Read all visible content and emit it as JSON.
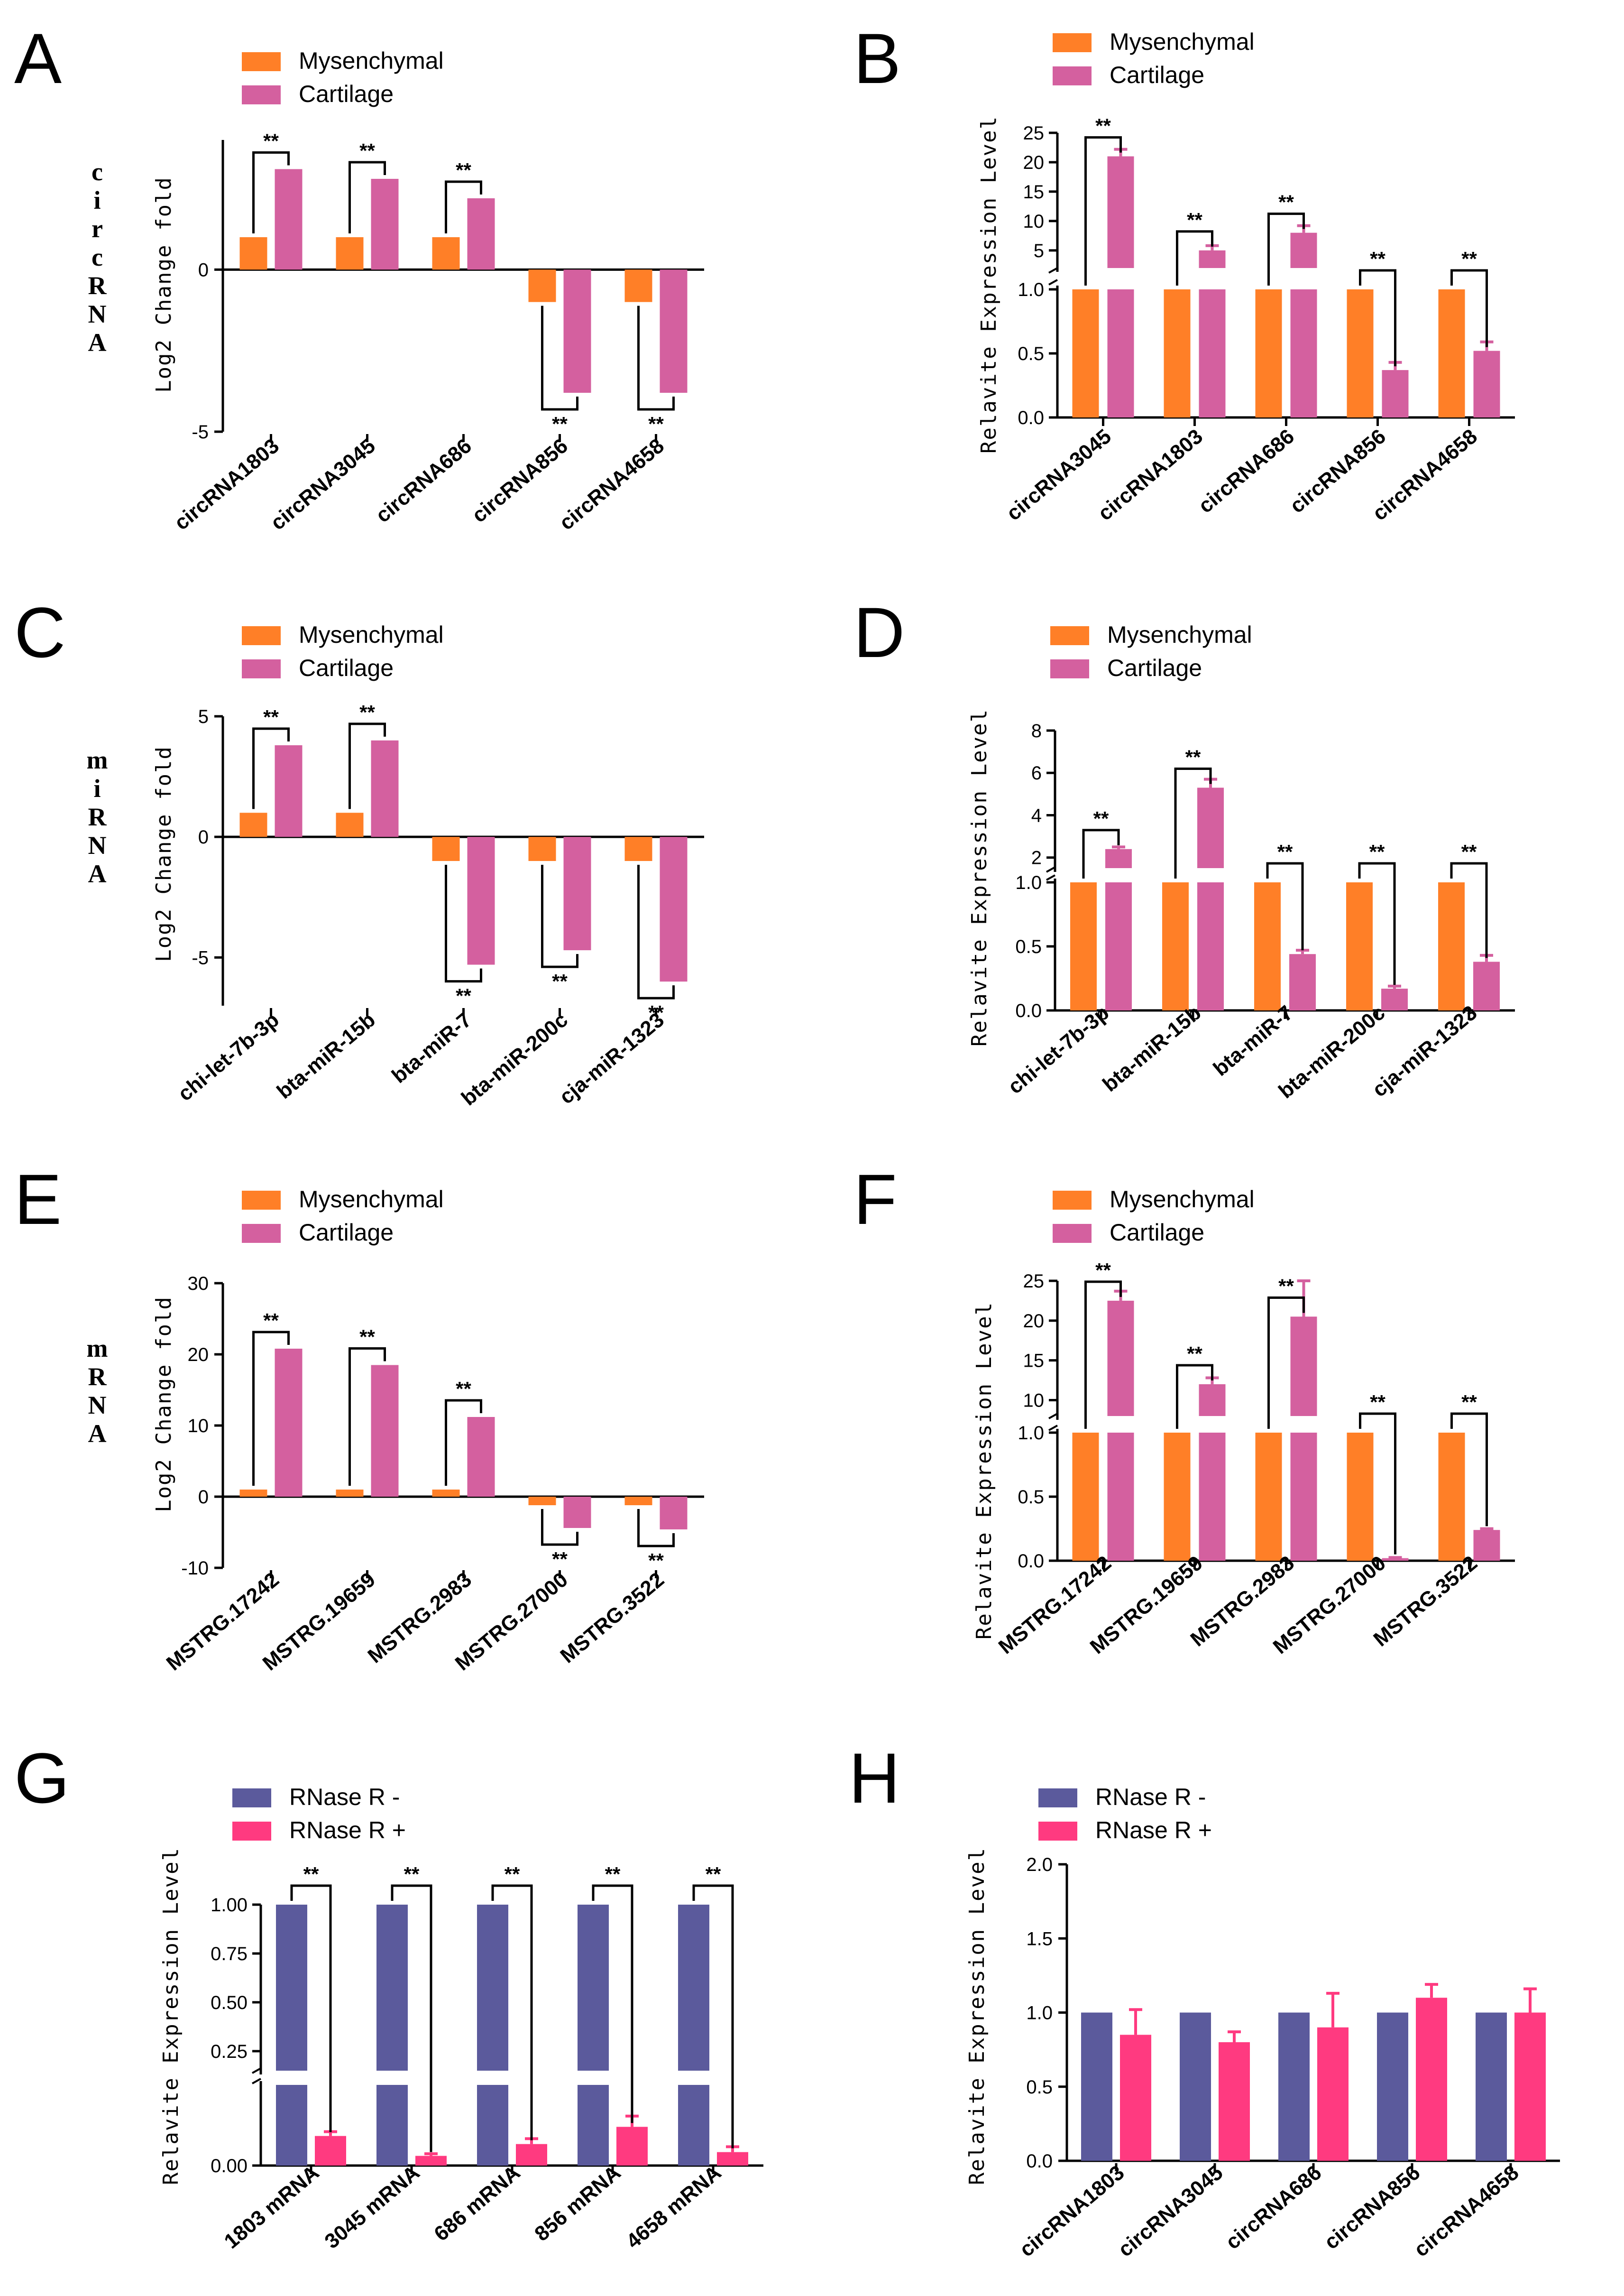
{
  "colors": {
    "orange": "#FF7F27",
    "magenta": "#D4609F",
    "purple": "#5B5A9C",
    "pink": "#FF3A80",
    "axis": "#000000"
  },
  "chart_data": [
    {
      "id": "A",
      "panel": "A",
      "type": "bar",
      "side_label": "circRNA",
      "ylabel": "Log2 Change fold",
      "legend": [
        "Mysenchymal",
        "Cartilage"
      ],
      "categories": [
        "circRNA1803",
        "circRNA3045",
        "circRNA686",
        "circRNA856",
        "circRNA4658"
      ],
      "series": [
        {
          "name": "Mysenchymal",
          "values": [
            1,
            1,
            1,
            -1,
            -1
          ]
        },
        {
          "name": "Cartilage",
          "values": [
            3.1,
            2.8,
            2.2,
            -3.8,
            -3.8
          ]
        }
      ],
      "ylim": [
        -5,
        4
      ],
      "yticks": [
        {
          "value": -5,
          "label": "-5"
        },
        {
          "value": 0,
          "label": "0"
        }
      ],
      "significance": [
        "**",
        "**",
        "**",
        "**",
        "**"
      ]
    },
    {
      "id": "B",
      "panel": "B",
      "type": "bar",
      "ylabel": "Relavite Expression Level",
      "legend": [
        "Mysenchymal",
        "Cartilage"
      ],
      "categories": [
        "circRNA3045",
        "circRNA1803",
        "circRNA686",
        "circRNA856",
        "circRNA4658"
      ],
      "series": [
        {
          "name": "Mysenchymal",
          "values": [
            1,
            1,
            1,
            1,
            1
          ]
        },
        {
          "name": "Cartilage",
          "values": [
            21,
            5,
            8,
            0.37,
            0.52
          ],
          "errors": [
            1.2,
            0.8,
            1.2,
            0.06,
            0.07
          ]
        }
      ],
      "broken_axis": {
        "lower": [
          0,
          1.0
        ],
        "upper": [
          2,
          25
        ]
      },
      "yticks_lower": [
        {
          "value": 0,
          "label": "0.0"
        },
        {
          "value": 0.5,
          "label": "0.5"
        },
        {
          "value": 1.0,
          "label": "1.0"
        }
      ],
      "yticks_upper": [
        {
          "value": 5,
          "label": "5"
        },
        {
          "value": 10,
          "label": "10"
        },
        {
          "value": 15,
          "label": "15"
        },
        {
          "value": 20,
          "label": "20"
        },
        {
          "value": 25,
          "label": "25"
        }
      ],
      "significance": [
        "**",
        "**",
        "**",
        "**",
        "**"
      ]
    },
    {
      "id": "C",
      "panel": "C",
      "type": "bar",
      "side_label": "miRNA",
      "ylabel": "Log2 Change fold",
      "legend": [
        "Mysenchymal",
        "Cartilage"
      ],
      "categories": [
        "chi-let-7b-3p",
        "bta-miR-15b",
        "bta-miR-7",
        "bta-miR-200c",
        "cja-miR-1323"
      ],
      "series": [
        {
          "name": "Mysenchymal",
          "values": [
            1,
            1,
            -1,
            -1,
            -1
          ]
        },
        {
          "name": "Cartilage",
          "values": [
            3.8,
            4,
            -5.3,
            -4.7,
            -6
          ]
        }
      ],
      "ylim": [
        -7,
        5
      ],
      "yticks": [
        {
          "value": -5,
          "label": "-5"
        },
        {
          "value": 0,
          "label": "0"
        },
        {
          "value": 5,
          "label": "5"
        }
      ],
      "significance": [
        "**",
        "**",
        "**",
        "**",
        "**"
      ]
    },
    {
      "id": "D",
      "panel": "D",
      "type": "bar",
      "ylabel": "Relavite Expression Level",
      "legend": [
        "Mysenchymal",
        "Cartilage"
      ],
      "categories": [
        "chi-let-7b-3p",
        "bta-miR-15b",
        "bta-miR-7",
        "bta-miR-200c",
        "cja-miR-1323"
      ],
      "series": [
        {
          "name": "Mysenchymal",
          "values": [
            1,
            1,
            1,
            1,
            1
          ]
        },
        {
          "name": "Cartilage",
          "values": [
            2.4,
            5.3,
            0.44,
            0.17,
            0.38
          ],
          "errors": [
            0.1,
            0.4,
            0.03,
            0.02,
            0.05
          ]
        }
      ],
      "broken_axis": {
        "lower": [
          0,
          1.0
        ],
        "upper": [
          1.5,
          8
        ]
      },
      "yticks_lower": [
        {
          "value": 0,
          "label": "0.0"
        },
        {
          "value": 0.5,
          "label": "0.5"
        },
        {
          "value": 1.0,
          "label": "1.0"
        }
      ],
      "yticks_upper": [
        {
          "value": 2,
          "label": "2"
        },
        {
          "value": 4,
          "label": "4"
        },
        {
          "value": 6,
          "label": "6"
        },
        {
          "value": 8,
          "label": "8"
        }
      ],
      "significance": [
        "**",
        "**",
        "**",
        "**",
        "**"
      ]
    },
    {
      "id": "E",
      "panel": "E",
      "type": "bar",
      "side_label": "mRNA",
      "ylabel": "Log2 Change fold",
      "legend": [
        "Mysenchymal",
        "Cartilage"
      ],
      "categories": [
        "MSTRG.17242",
        "MSTRG.19659",
        "MSTRG.2983",
        "MSTRG.27000",
        "MSTRG.3522"
      ],
      "series": [
        {
          "name": "Mysenchymal",
          "values": [
            1,
            1,
            1,
            -1.2,
            -1.2
          ]
        },
        {
          "name": "Cartilage",
          "values": [
            20.8,
            18.5,
            11.2,
            -4.4,
            -4.6
          ]
        }
      ],
      "ylim": [
        -10,
        30
      ],
      "yticks": [
        {
          "value": -10,
          "label": "-10"
        },
        {
          "value": 0,
          "label": "0"
        },
        {
          "value": 10,
          "label": "10"
        },
        {
          "value": 20,
          "label": "20"
        },
        {
          "value": 30,
          "label": "30"
        }
      ],
      "significance": [
        "**",
        "**",
        "**",
        "**",
        "**"
      ]
    },
    {
      "id": "F",
      "panel": "F",
      "type": "bar",
      "ylabel": "Relavite Expression Level",
      "legend": [
        "Mysenchymal",
        "Cartilage"
      ],
      "categories": [
        "MSTRG.17242",
        "MSTRG.19659",
        "MSTRG.2983",
        "MSTRG.27000",
        "MSTRG.3522"
      ],
      "series": [
        {
          "name": "Mysenchymal",
          "values": [
            1,
            1,
            1,
            1,
            1
          ]
        },
        {
          "name": "Cartilage",
          "values": [
            22.5,
            12,
            20.5,
            0.02,
            0.24
          ],
          "errors": [
            1.2,
            0.8,
            4.5,
            0.005,
            0.01
          ]
        }
      ],
      "broken_axis": {
        "lower": [
          0,
          1.0
        ],
        "upper": [
          8,
          25
        ]
      },
      "yticks_lower": [
        {
          "value": 0,
          "label": "0.0"
        },
        {
          "value": 0.5,
          "label": "0.5"
        },
        {
          "value": 1.0,
          "label": "1.0"
        }
      ],
      "yticks_upper": [
        {
          "value": 10,
          "label": "10"
        },
        {
          "value": 15,
          "label": "15"
        },
        {
          "value": 20,
          "label": "20"
        },
        {
          "value": 25,
          "label": "25"
        }
      ],
      "significance": [
        "**",
        "**",
        "**",
        "**",
        "**"
      ]
    },
    {
      "id": "G",
      "panel": "G",
      "type": "bar",
      "ylabel": "Relavite Expression Level",
      "legend": [
        "RNase R -",
        "RNase R +"
      ],
      "categories": [
        "1803 mRNA",
        "3045 mRNA",
        "686 mRNA",
        "856 mRNA",
        "4658 mRNA"
      ],
      "series": [
        {
          "name": "RNase R -",
          "values": [
            1,
            1,
            1,
            1,
            1
          ]
        },
        {
          "name": "RNase R +",
          "values": [
            0.055,
            0.018,
            0.04,
            0.072,
            0.025
          ],
          "errors": [
            0.008,
            0.004,
            0.01,
            0.02,
            0.01
          ]
        }
      ],
      "broken_axis": {
        "lower": [
          0,
          0.15
        ],
        "upper": [
          0.15,
          1.0
        ]
      },
      "yticks_lower": [
        {
          "value": 0,
          "label": "0.00"
        }
      ],
      "yticks_upper": [
        {
          "value": 0.25,
          "label": "0.25"
        },
        {
          "value": 0.5,
          "label": "0.50"
        },
        {
          "value": 0.75,
          "label": "0.75"
        },
        {
          "value": 1.0,
          "label": "1.00"
        }
      ],
      "significance": [
        "**",
        "**",
        "**",
        "**",
        "**"
      ]
    },
    {
      "id": "H",
      "panel": "H",
      "type": "bar",
      "ylabel": "Relavite Expression Level",
      "legend": [
        "RNase R -",
        "RNase R +"
      ],
      "categories": [
        "circRNA1803",
        "circRNA3045",
        "circRNA686",
        "circRNA856",
        "circRNA4658"
      ],
      "series": [
        {
          "name": "RNase R -",
          "values": [
            1,
            1,
            1,
            1,
            1
          ]
        },
        {
          "name": "RNase R +",
          "values": [
            0.85,
            0.8,
            0.9,
            1.1,
            1.0
          ],
          "errors": [
            0.17,
            0.07,
            0.23,
            0.09,
            0.16
          ]
        }
      ],
      "ylim": [
        0,
        2.0
      ],
      "yticks": [
        {
          "value": 0,
          "label": "0.0"
        },
        {
          "value": 0.5,
          "label": "0.5"
        },
        {
          "value": 1.0,
          "label": "1.0"
        },
        {
          "value": 1.5,
          "label": "1.5"
        },
        {
          "value": 2.0,
          "label": "2.0"
        }
      ],
      "significance": []
    }
  ]
}
